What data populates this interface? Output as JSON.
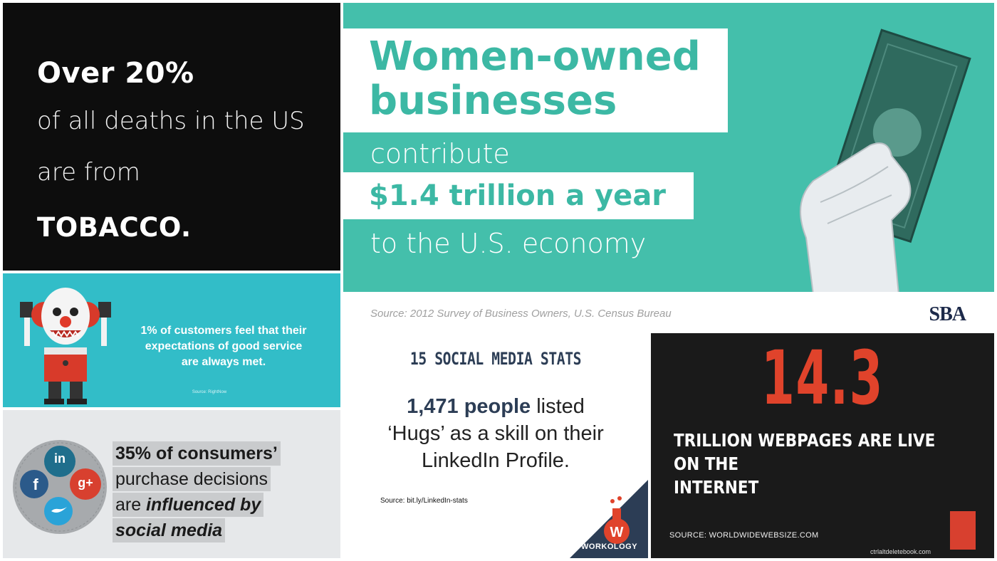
{
  "tobacco": {
    "line1": "Over 20%",
    "line2": "of all deaths in the US",
    "line3": "are from",
    "line4": "TOBACCO."
  },
  "women": {
    "line1": "Women-owned",
    "line2": "businesses",
    "line3": "contribute",
    "line4": "$1.4 trillion a year",
    "line5": "to the U.S. economy",
    "source": "Source: 2012 Survey of Business Owners, U.S. Census Bureau",
    "logo": "SBA"
  },
  "clown": {
    "line1": "1% of customers feel that their",
    "line2": "expectations of good service",
    "line3": "are always met.",
    "source": "Source: RightNow"
  },
  "social": {
    "line1": "35% of consumers’",
    "line2": "purchase decisions",
    "line3a": "are ",
    "line3b": "influenced by",
    "line4": "social media",
    "icons": {
      "linkedin": "in",
      "facebook": "f",
      "google": "g+"
    }
  },
  "stats": {
    "heading": "15 SOCIAL MEDIA STATS",
    "bold": "1,471 people",
    "line1_rest": " listed",
    "line2": "‘Hugs’ as a skill on their",
    "line3": "LinkedIn Profile.",
    "source": "Source: bit.ly/LinkedIn-stats",
    "logo": "WORKOLOGY"
  },
  "web": {
    "number": "14.3",
    "caption1": "TRILLION WEBPAGES ARE LIVE ON THE",
    "caption2": "INTERNET",
    "source": "SOURCE: WORLDWIDEWEBSIZE.COM",
    "site": "ctrlaltdeletebook.com"
  },
  "colors": {
    "teal": "#44bfab",
    "cyan": "#32bdc8",
    "orange_red": "#e0432b",
    "navy": "#2c3d55"
  }
}
